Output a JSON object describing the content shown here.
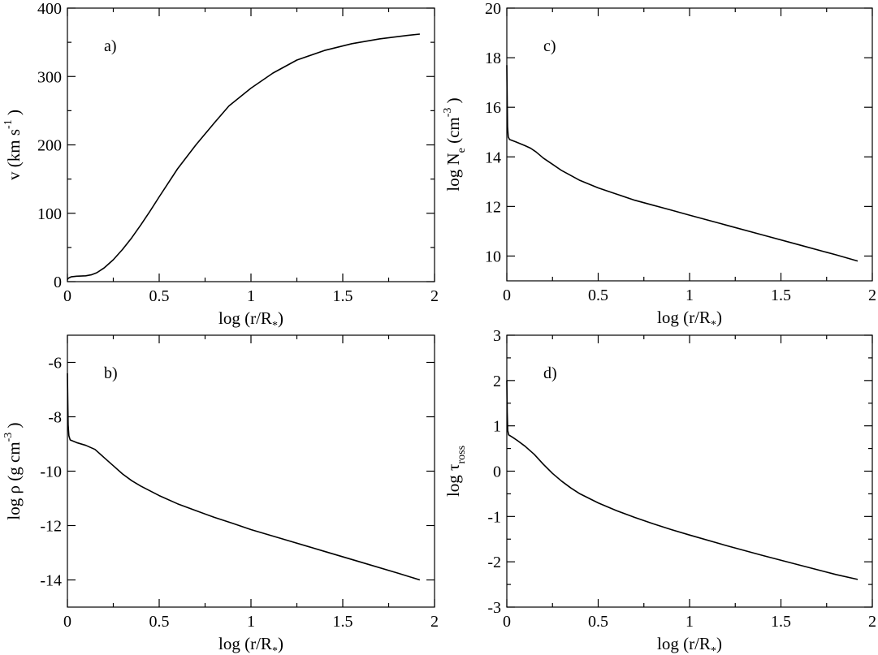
{
  "chart_data": [
    {
      "type": "line",
      "panel_label": "a)",
      "xlabel": {
        "main": "log (r/R",
        "sub": "*",
        "tail": ")"
      },
      "ylabel": {
        "parts": [
          {
            "t": "v (km s"
          },
          {
            "t": "-1",
            "sup": true
          },
          {
            "t": " )"
          }
        ]
      },
      "xlim": [
        0,
        2
      ],
      "ylim": [
        0,
        400
      ],
      "xticks": [
        "0",
        "0.5",
        "1",
        "1.5",
        "2"
      ],
      "yticks": [
        "0",
        "100",
        "200",
        "300",
        "400"
      ],
      "series": [
        {
          "x": [
            0,
            0.005,
            0.02,
            0.05,
            0.1,
            0.13,
            0.16,
            0.2,
            0.25,
            0.3,
            0.35,
            0.4,
            0.45,
            0.5,
            0.6,
            0.7,
            0.8,
            0.88,
            1.0,
            1.12,
            1.25,
            1.4,
            1.55,
            1.7,
            1.85,
            1.92
          ],
          "y": [
            3,
            5,
            7,
            8,
            8.5,
            10,
            13,
            20,
            32,
            47,
            64,
            83,
            103,
            124,
            165,
            200,
            232,
            257,
            283,
            305,
            324,
            338,
            348,
            355,
            360,
            362
          ]
        }
      ]
    },
    {
      "type": "line",
      "panel_label": "b)",
      "xlabel": {
        "main": "log (r/R",
        "sub": "*",
        "tail": ")"
      },
      "ylabel": {
        "parts": [
          {
            "t": "log ρ (g cm"
          },
          {
            "t": "-3",
            "sup": true
          },
          {
            "t": " )"
          }
        ]
      },
      "xlim": [
        0,
        2
      ],
      "ylim": [
        -15,
        -5
      ],
      "xticks": [
        "0",
        "0.5",
        "1",
        "1.5",
        "2"
      ],
      "yticks": [
        "-14",
        "-12",
        "-10",
        "-8",
        "-6"
      ],
      "series": [
        {
          "x": [
            0,
            0.002,
            0.004,
            0.008,
            0.015,
            0.05,
            0.1,
            0.15,
            0.2,
            0.25,
            0.3,
            0.35,
            0.4,
            0.5,
            0.6,
            0.7,
            0.8,
            0.9,
            1.0,
            1.2,
            1.4,
            1.6,
            1.8,
            1.92
          ],
          "y": [
            -6.4,
            -7.5,
            -8.3,
            -8.7,
            -8.85,
            -8.95,
            -9.05,
            -9.2,
            -9.5,
            -9.8,
            -10.1,
            -10.35,
            -10.55,
            -10.9,
            -11.2,
            -11.45,
            -11.7,
            -11.92,
            -12.15,
            -12.55,
            -12.95,
            -13.35,
            -13.75,
            -14.0
          ]
        }
      ]
    },
    {
      "type": "line",
      "panel_label": "c)",
      "xlabel": {
        "main": "log (r/R",
        "sub": "*",
        "tail": ")"
      },
      "ylabel": {
        "parts": [
          {
            "t": "log N"
          },
          {
            "t": "e",
            "sub": true
          },
          {
            "t": " (cm"
          },
          {
            "t": "-3",
            "sup": true
          },
          {
            "t": " )"
          }
        ]
      },
      "xlim": [
        0,
        2
      ],
      "ylim": [
        9,
        20
      ],
      "xticks": [
        "0",
        "0.5",
        "1",
        "1.5",
        "2"
      ],
      "yticks": [
        "10",
        "12",
        "14",
        "16",
        "18",
        "20"
      ],
      "series": [
        {
          "x": [
            0,
            0.002,
            0.004,
            0.008,
            0.015,
            0.05,
            0.1,
            0.13,
            0.16,
            0.2,
            0.25,
            0.3,
            0.35,
            0.4,
            0.5,
            0.6,
            0.7,
            0.8,
            0.9,
            1.0,
            1.2,
            1.4,
            1.6,
            1.8,
            1.92
          ],
          "y": [
            17.7,
            16.2,
            15.2,
            14.8,
            14.7,
            14.6,
            14.45,
            14.35,
            14.2,
            13.95,
            13.7,
            13.45,
            13.25,
            13.05,
            12.75,
            12.5,
            12.25,
            12.05,
            11.85,
            11.65,
            11.25,
            10.85,
            10.45,
            10.05,
            9.8
          ]
        }
      ]
    },
    {
      "type": "line",
      "panel_label": "d)",
      "xlabel": {
        "main": "log (r/R",
        "sub": "*",
        "tail": ")"
      },
      "ylabel": {
        "parts": [
          {
            "t": "log τ"
          },
          {
            "t": "ross",
            "sub": true
          }
        ]
      },
      "xlim": [
        0,
        2
      ],
      "ylim": [
        -3,
        3
      ],
      "xticks": [
        "0",
        "0.5",
        "1",
        "1.5",
        "2"
      ],
      "yticks": [
        "-3",
        "-2",
        "-1",
        "0",
        "1",
        "2",
        "3"
      ],
      "series": [
        {
          "x": [
            0,
            0.002,
            0.005,
            0.01,
            0.03,
            0.06,
            0.1,
            0.15,
            0.2,
            0.25,
            0.3,
            0.35,
            0.4,
            0.5,
            0.6,
            0.7,
            0.8,
            0.9,
            1.0,
            1.2,
            1.4,
            1.6,
            1.8,
            1.92
          ],
          "y": [
            2.0,
            1.3,
            0.9,
            0.8,
            0.75,
            0.67,
            0.55,
            0.37,
            0.15,
            -0.05,
            -0.22,
            -0.37,
            -0.5,
            -0.7,
            -0.87,
            -1.02,
            -1.16,
            -1.29,
            -1.41,
            -1.64,
            -1.86,
            -2.07,
            -2.28,
            -2.39
          ]
        }
      ]
    }
  ]
}
